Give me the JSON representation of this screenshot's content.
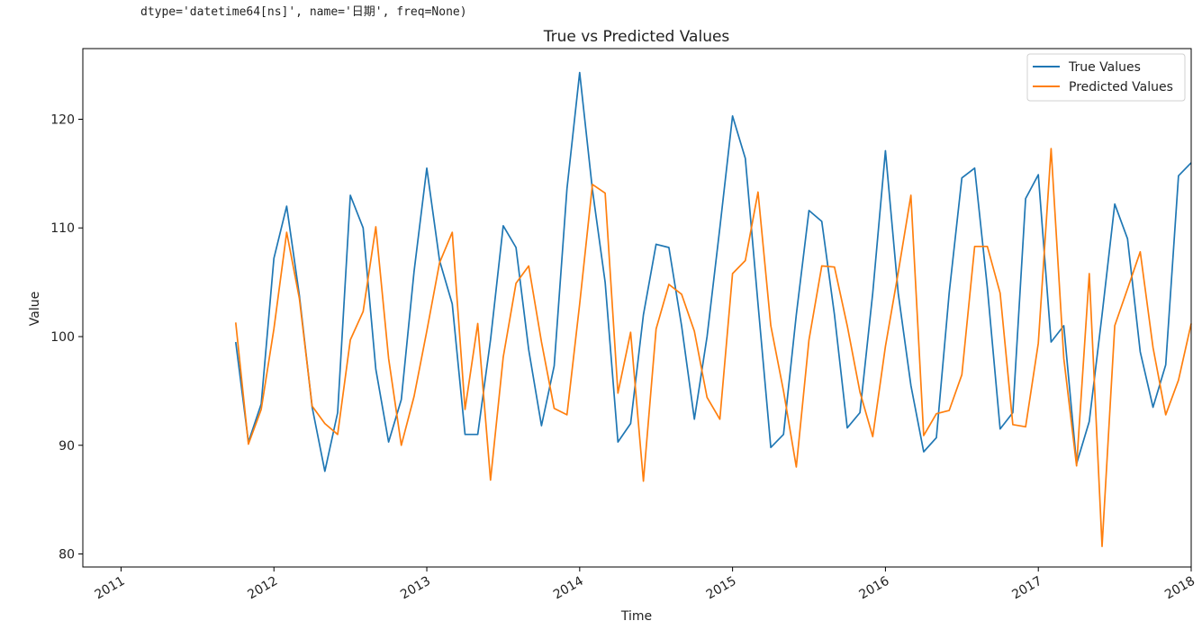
{
  "output_text": "dtype='datetime64[ns]', name='日期', freq=None)",
  "chart_data": {
    "type": "line",
    "title": "True vs Predicted Values",
    "xlabel": "Time",
    "ylabel": "Value",
    "xlim": [
      "2010-10-01",
      "2018-01-01"
    ],
    "ylim": [
      78.8,
      126.5
    ],
    "x_ticks": [
      "2011",
      "2012",
      "2013",
      "2014",
      "2015",
      "2016",
      "2017",
      "2018"
    ],
    "y_ticks": [
      80,
      90,
      100,
      110,
      120
    ],
    "legend_position": "top-right",
    "colors": {
      "true": "#1f77b4",
      "pred": "#ff7f0e"
    },
    "x": [
      "2011-10",
      "2011-11",
      "2011-12",
      "2012-01",
      "2012-02",
      "2012-03",
      "2012-04",
      "2012-05",
      "2012-06",
      "2012-07",
      "2012-08",
      "2012-09",
      "2012-10",
      "2012-11",
      "2012-12",
      "2013-01",
      "2013-02",
      "2013-03",
      "2013-04",
      "2013-05",
      "2013-06",
      "2013-07",
      "2013-08",
      "2013-09",
      "2013-10",
      "2013-11",
      "2013-12",
      "2014-01",
      "2014-02",
      "2014-03",
      "2014-04",
      "2014-05",
      "2014-06",
      "2014-07",
      "2014-08",
      "2014-09",
      "2014-10",
      "2014-11",
      "2014-12",
      "2015-01",
      "2015-02",
      "2015-03",
      "2015-04",
      "2015-05",
      "2015-06",
      "2015-07",
      "2015-08",
      "2015-09",
      "2015-10",
      "2015-11",
      "2015-12",
      "2016-01",
      "2016-02",
      "2016-03",
      "2016-04",
      "2016-05",
      "2016-06",
      "2016-07",
      "2016-08",
      "2016-09",
      "2016-10",
      "2016-11",
      "2016-12",
      "2017-01",
      "2017-02",
      "2017-03",
      "2017-04",
      "2017-05",
      "2017-06",
      "2017-07",
      "2017-08",
      "2017-09",
      "2017-10",
      "2017-11",
      "2017-12",
      "2018-01"
    ],
    "series": [
      {
        "name": "True Values",
        "values": [
          99.5,
          90.3,
          93.8,
          107.2,
          112.0,
          103.8,
          93.5,
          87.6,
          93.0,
          113.0,
          110.0,
          97.0,
          90.3,
          94.2,
          106.0,
          115.5,
          107.0,
          103.0,
          91.0,
          91.0,
          99.7,
          110.2,
          108.2,
          98.8,
          91.8,
          97.3,
          113.6,
          124.3,
          113.5,
          105.0,
          90.3,
          92.0,
          102.0,
          108.5,
          108.2,
          101.0,
          92.4,
          100.0,
          110.0,
          120.3,
          116.4,
          103.0,
          89.8,
          91.0,
          102.0,
          111.6,
          110.6,
          102.0,
          91.6,
          93.0,
          104.0,
          117.1,
          104.0,
          95.5,
          89.4,
          90.7,
          104.0,
          114.6,
          115.5,
          104.5,
          91.5,
          93.0,
          112.7,
          114.9,
          99.5,
          101.0,
          88.3,
          92.2,
          102.0,
          112.2,
          109.0,
          98.6,
          93.5,
          97.4,
          114.8,
          116.0
        ]
      },
      {
        "name": "Predicted Values",
        "values": [
          101.3,
          90.1,
          93.3,
          100.7,
          109.6,
          103.5,
          93.6,
          92.0,
          91.0,
          99.7,
          102.3,
          110.1,
          98.0,
          90.0,
          94.5,
          100.5,
          106.8,
          109.6,
          93.3,
          101.2,
          86.8,
          98.1,
          104.9,
          106.5,
          99.5,
          93.4,
          92.8,
          103.0,
          114.0,
          113.2,
          94.8,
          100.4,
          86.7,
          100.7,
          104.8,
          103.9,
          100.5,
          94.4,
          92.4,
          105.8,
          107.0,
          113.3,
          101.0,
          95.0,
          88.0,
          99.7,
          106.5,
          106.4,
          101.0,
          94.9,
          90.8,
          99.1,
          105.9,
          113.0,
          90.9,
          92.9,
          93.2,
          96.5,
          108.3,
          108.3,
          104.0,
          91.9,
          91.7,
          99.4,
          117.3,
          98.0,
          88.1,
          105.8,
          80.7,
          101.0,
          104.4,
          107.8,
          99.0,
          92.8,
          96.0,
          101.2
        ]
      }
    ]
  }
}
